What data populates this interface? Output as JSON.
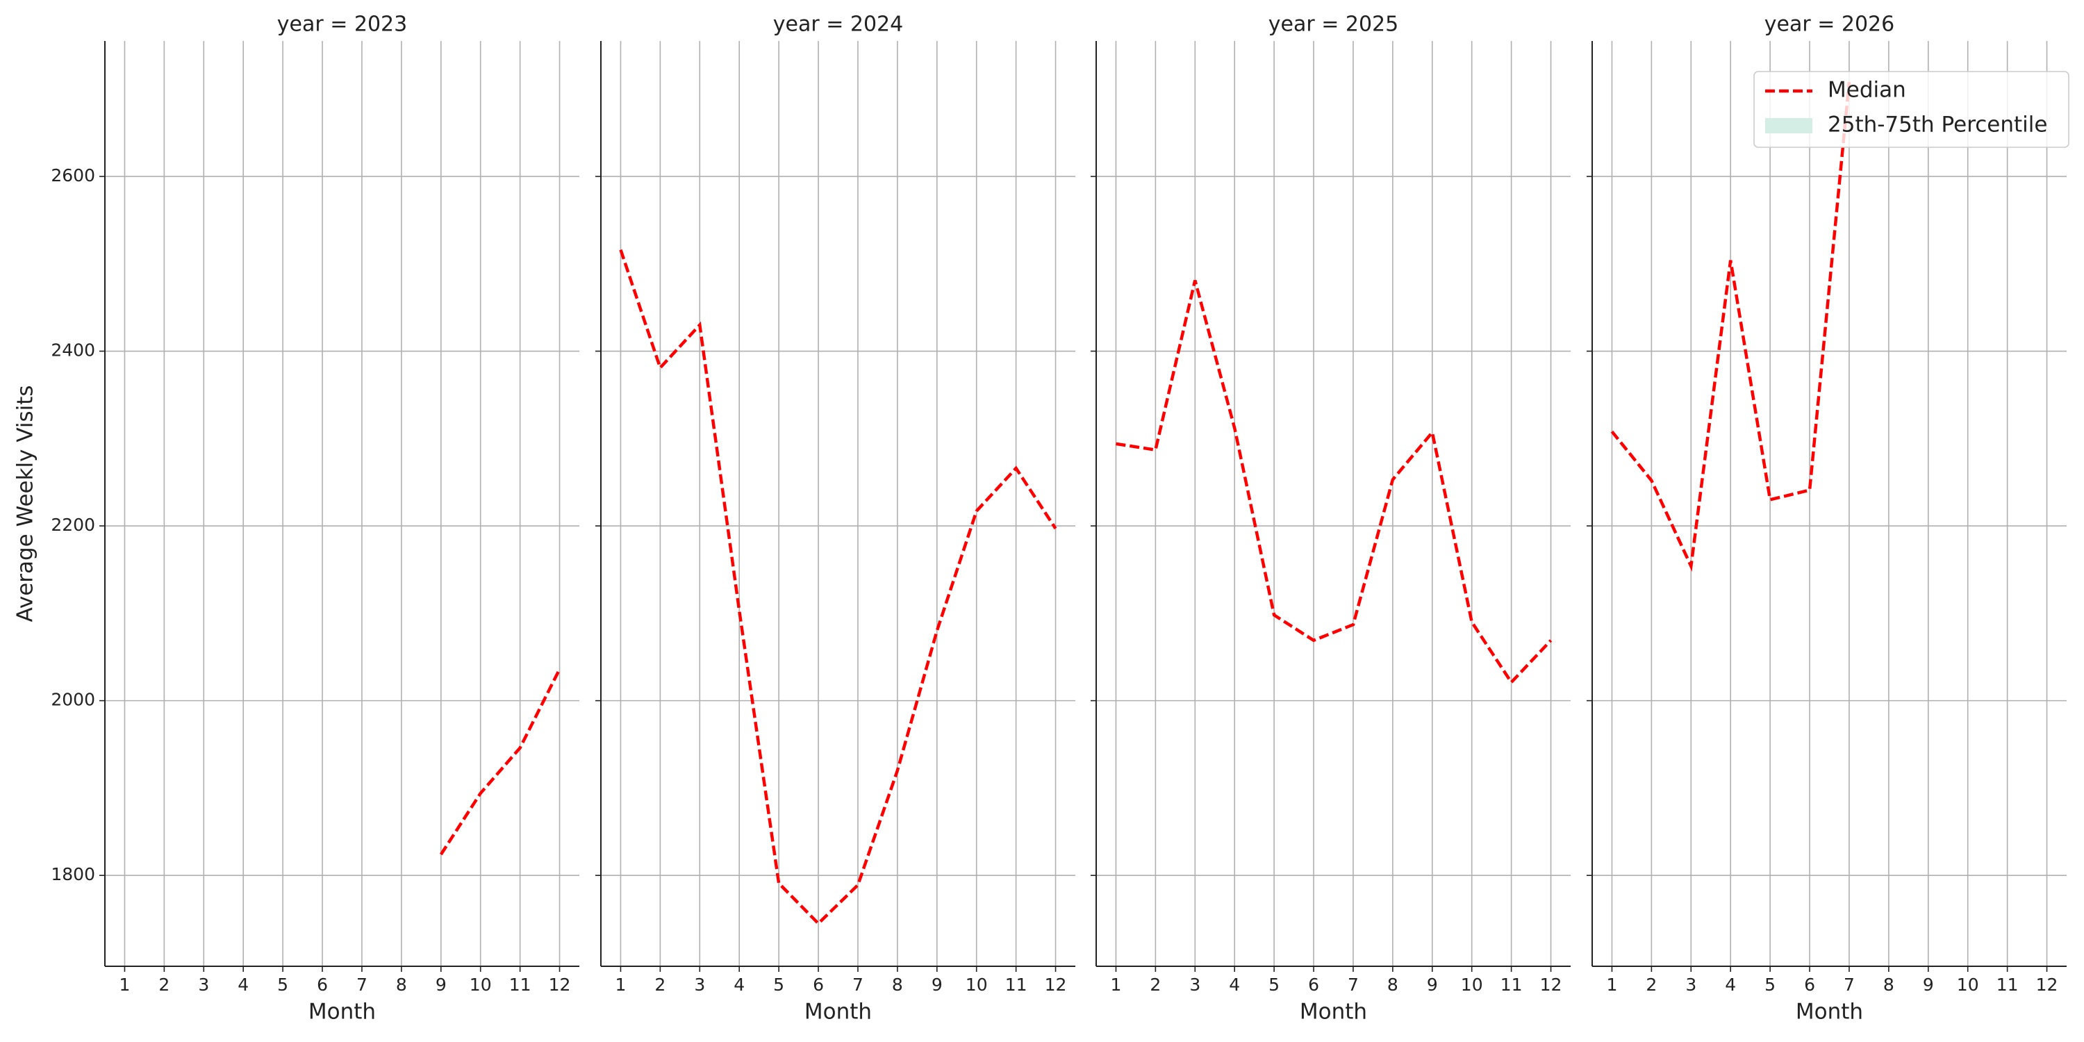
{
  "y_label": "Average Weekly Visits",
  "legend": {
    "position": "upper right",
    "entries": [
      {
        "name": "Median",
        "color": "#ff0000",
        "style": "dashed"
      },
      {
        "name": "25th-75th Percentile",
        "color": "#d4ede5",
        "style": "fill"
      }
    ]
  },
  "chart_data": [
    {
      "type": "line",
      "title": "year = 2023",
      "x_label": "Month",
      "x": [
        1,
        2,
        3,
        4,
        5,
        6,
        7,
        8,
        9,
        10,
        11,
        12
      ],
      "xlim": [
        0.5,
        12.5
      ],
      "xticks": [
        1,
        2,
        3,
        4,
        5,
        6,
        7,
        8,
        9,
        10,
        11,
        12
      ],
      "ylim": [
        1696,
        2755
      ],
      "yticks": [
        1800,
        2000,
        2200,
        2400,
        2600
      ],
      "grid": true,
      "show_ytick_labels": true,
      "series": [
        {
          "color": "#ff0000",
          "style": "dashed",
          "values": [
            null,
            null,
            null,
            null,
            null,
            null,
            null,
            null,
            1824,
            1894,
            1946,
            2036
          ]
        }
      ]
    },
    {
      "type": "line",
      "title": "year = 2024",
      "x_label": "Month",
      "x": [
        1,
        2,
        3,
        4,
        5,
        6,
        7,
        8,
        9,
        10,
        11,
        12
      ],
      "xlim": [
        0.5,
        12.5
      ],
      "xticks": [
        1,
        2,
        3,
        4,
        5,
        6,
        7,
        8,
        9,
        10,
        11,
        12
      ],
      "ylim": [
        1696,
        2755
      ],
      "yticks": [
        1800,
        2000,
        2200,
        2400,
        2600
      ],
      "grid": true,
      "show_ytick_labels": false,
      "series": [
        {
          "color": "#ff0000",
          "style": "dashed",
          "values": [
            2516,
            2381,
            2430,
            2103,
            1791,
            1745,
            1789,
            1920,
            2080,
            2217,
            2266,
            2197
          ]
        }
      ]
    },
    {
      "type": "line",
      "title": "year = 2025",
      "x_label": "Month",
      "x": [
        1,
        2,
        3,
        4,
        5,
        6,
        7,
        8,
        9,
        10,
        11,
        12
      ],
      "xlim": [
        0.5,
        12.5
      ],
      "xticks": [
        1,
        2,
        3,
        4,
        5,
        6,
        7,
        8,
        9,
        10,
        11,
        12
      ],
      "ylim": [
        1696,
        2755
      ],
      "yticks": [
        1800,
        2000,
        2200,
        2400,
        2600
      ],
      "grid": true,
      "show_ytick_labels": false,
      "series": [
        {
          "color": "#ff0000",
          "style": "dashed",
          "values": [
            2294,
            2287,
            2481,
            2312,
            2098,
            2069,
            2087,
            2253,
            2307,
            2090,
            2021,
            2069
          ]
        }
      ]
    },
    {
      "type": "line",
      "title": "year = 2026",
      "x_label": "Month",
      "x": [
        1,
        2,
        3,
        4,
        5,
        6,
        7,
        8,
        9,
        10,
        11,
        12
      ],
      "xlim": [
        0.5,
        12.5
      ],
      "xticks": [
        1,
        2,
        3,
        4,
        5,
        6,
        7,
        8,
        9,
        10,
        11,
        12
      ],
      "ylim": [
        1696,
        2755
      ],
      "yticks": [
        1800,
        2000,
        2200,
        2400,
        2600
      ],
      "grid": true,
      "show_ytick_labels": false,
      "series": [
        {
          "color": "#ff0000",
          "style": "dashed",
          "values": [
            2308,
            2252,
            2154,
            2504,
            2230,
            2241,
            2708,
            null,
            null,
            null,
            null,
            null
          ]
        }
      ]
    }
  ]
}
